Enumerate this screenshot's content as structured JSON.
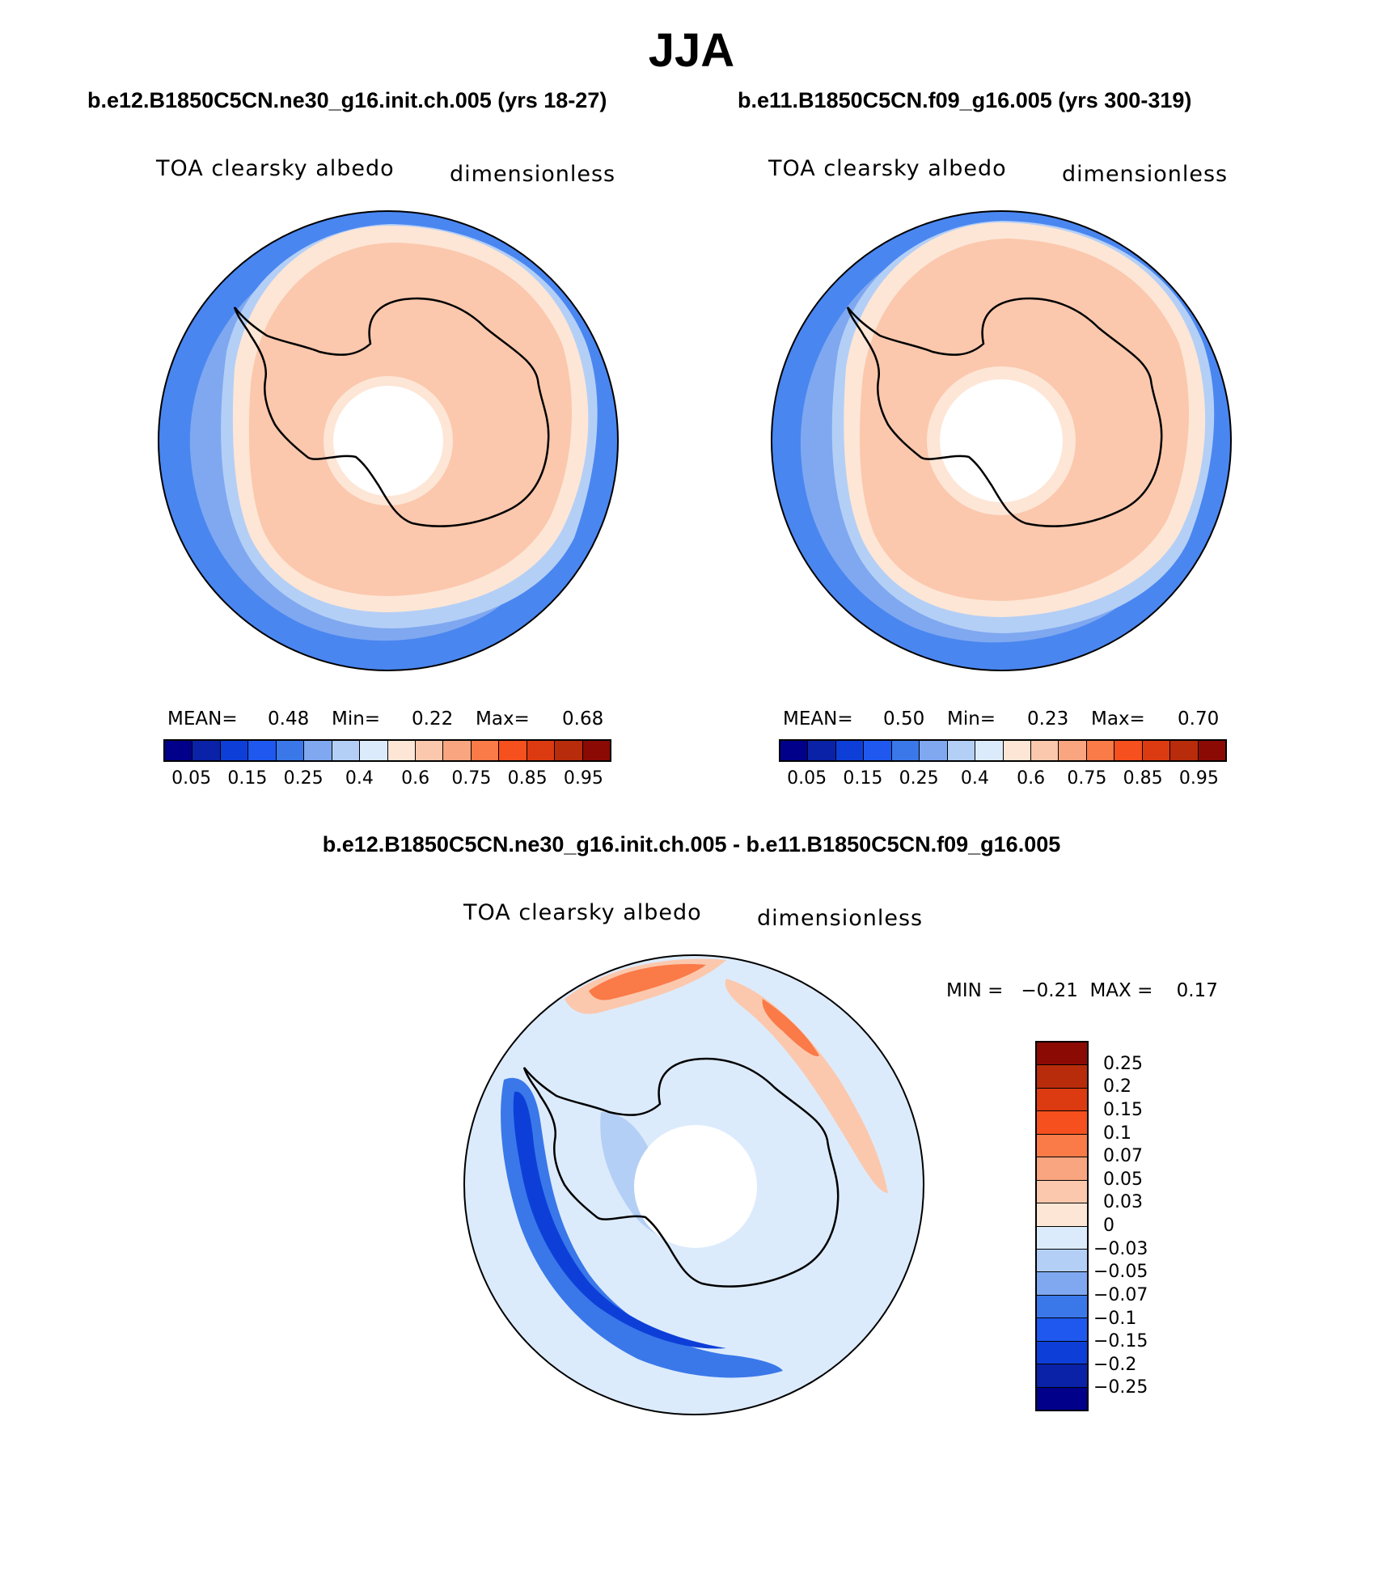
{
  "figure": {
    "season_title": "JJA"
  },
  "panels": [
    {
      "case_title": "b.e12.B1850C5CN.ne30_g16.init.ch.005 (yrs 18-27)",
      "variable_label": "TOA clearsky albedo",
      "units_label": "dimensionless",
      "mean_label": "MEAN=",
      "mean_value": "0.48",
      "min_label": "Min=",
      "min_value": "0.22",
      "max_label": "Max=",
      "max_value": "0.68"
    },
    {
      "case_title": "b.e11.B1850C5CN.f09_g16.005 (yrs 300-319)",
      "variable_label": "TOA clearsky albedo",
      "units_label": "dimensionless",
      "mean_label": "MEAN=",
      "mean_value": "0.50",
      "min_label": "Min=",
      "min_value": "0.23",
      "max_label": "Max=",
      "max_value": "0.70"
    }
  ],
  "difference_panel": {
    "title": "b.e12.B1850C5CN.ne30_g16.init.ch.005 - b.e11.B1850C5CN.f09_g16.005",
    "variable_label": "TOA clearsky albedo",
    "units_label": "dimensionless",
    "minmax_text": "MIN =   −0.21  MAX =    0.17"
  },
  "colorbars": {
    "absolute": {
      "colors": [
        "#00008b",
        "#0a22a8",
        "#0d3fd8",
        "#1e58ee",
        "#3a78ea",
        "#7fa8f0",
        "#b4cff6",
        "#dcebfc",
        "#fde6d6",
        "#fbc8ad",
        "#f9a580",
        "#fa7a48",
        "#f5501e",
        "#dc3a10",
        "#b82c0b",
        "#8b0a04"
      ],
      "tick_labels": [
        "0.05",
        "0.15",
        "0.25",
        "0.4",
        "0.6",
        "0.75",
        "0.85",
        "0.95"
      ]
    },
    "difference": {
      "colors_top_to_bottom": [
        "#8b0a04",
        "#b82c0b",
        "#dc3a10",
        "#f5501e",
        "#fa7a48",
        "#f9a580",
        "#fbc8ad",
        "#fde6d6",
        "#dcebfc",
        "#b4cff6",
        "#7fa8f0",
        "#3a78ea",
        "#1e58ee",
        "#0d3fd8",
        "#0a22a8",
        "#00008b"
      ],
      "tick_labels": [
        "0.25",
        "0.2",
        "0.15",
        "0.1",
        "0.07",
        "0.05",
        "0.03",
        "0",
        "−0.03",
        "−0.05",
        "−0.07",
        "−0.1",
        "−0.15",
        "−0.2",
        "−0.25"
      ]
    }
  },
  "map_colors": {
    "outer_ocean": "#4a86f0",
    "ocean_mid": "#7fa8f0",
    "ice_edge": "#b4cff6",
    "transition": "#fde6d6",
    "ice_sheet": "#fbc8ad",
    "diff_background": "#dcebfc",
    "diff_negative": "#3a78ea",
    "diff_strong_negative": "#0d3fd8",
    "diff_positive": "#fa7a48",
    "diff_light_positive": "#fbc8ad"
  }
}
